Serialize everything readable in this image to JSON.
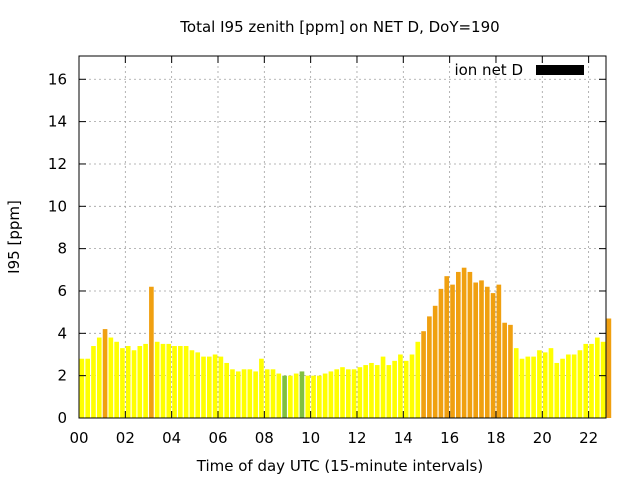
{
  "chart_data": {
    "type": "bar",
    "title": "Total I95 zenith [ppm] on NET D, DoY=190",
    "xlabel": "Time of day UTC (15-minute intervals)",
    "ylabel": "I95 [ppm]",
    "ylim": [
      0,
      17.1
    ],
    "xlim": [
      0,
      22.75
    ],
    "grid": true,
    "legend_position": "top-right",
    "legend": [
      {
        "name": "ion net D",
        "color": "#000000"
      }
    ],
    "x_ticks": [
      {
        "value": 0,
        "label": "00"
      },
      {
        "value": 2,
        "label": "02"
      },
      {
        "value": 4,
        "label": "04"
      },
      {
        "value": 6,
        "label": "06"
      },
      {
        "value": 8,
        "label": "08"
      },
      {
        "value": 10,
        "label": "10"
      },
      {
        "value": 12,
        "label": "12"
      },
      {
        "value": 14,
        "label": "14"
      },
      {
        "value": 16,
        "label": "16"
      },
      {
        "value": 18,
        "label": "18"
      },
      {
        "value": 20,
        "label": "20"
      },
      {
        "value": 22,
        "label": "22"
      }
    ],
    "y_ticks": [
      {
        "value": 0,
        "label": "0"
      },
      {
        "value": 2,
        "label": "2"
      },
      {
        "value": 4,
        "label": "4"
      },
      {
        "value": 6,
        "label": "6"
      },
      {
        "value": 8,
        "label": "8"
      },
      {
        "value": 10,
        "label": "10"
      },
      {
        "value": 12,
        "label": "12"
      },
      {
        "value": 14,
        "label": "14"
      },
      {
        "value": 16,
        "label": "16"
      }
    ],
    "bar_interval_hours": 0.25,
    "colors": {
      "low": "#ffff00",
      "medium": "#f0a010",
      "green": "#80c040"
    },
    "values": [
      2.8,
      2.8,
      3.4,
      3.8,
      4.2,
      3.8,
      3.6,
      3.3,
      3.4,
      3.2,
      3.4,
      3.5,
      6.2,
      3.6,
      3.5,
      3.5,
      3.4,
      3.4,
      3.4,
      3.2,
      3.1,
      2.9,
      2.9,
      3.0,
      2.9,
      2.6,
      2.3,
      2.2,
      2.3,
      2.3,
      2.2,
      2.8,
      2.3,
      2.3,
      2.1,
      2.0,
      2.0,
      2.1,
      2.2,
      2.0,
      2.0,
      2.0,
      2.1,
      2.2,
      2.3,
      2.4,
      2.3,
      2.3,
      2.4,
      2.5,
      2.6,
      2.5,
      2.9,
      2.5,
      2.7,
      3.0,
      2.7,
      3.0,
      3.6,
      4.1,
      4.8,
      5.3,
      6.1,
      6.7,
      6.3,
      6.9,
      7.1,
      6.9,
      6.4,
      6.5,
      6.2,
      5.9,
      6.3,
      4.5,
      4.4,
      3.3,
      2.8,
      2.9,
      2.9,
      3.2,
      3.1,
      3.3,
      2.6,
      2.8,
      3.0,
      3.0,
      3.2,
      3.5,
      3.5,
      3.8,
      3.6,
      4.7
    ],
    "color_class": [
      "low",
      "low",
      "low",
      "low",
      "medium",
      "low",
      "low",
      "low",
      "low",
      "low",
      "low",
      "low",
      "medium",
      "low",
      "low",
      "low",
      "low",
      "low",
      "low",
      "low",
      "low",
      "low",
      "low",
      "low",
      "low",
      "low",
      "low",
      "low",
      "low",
      "low",
      "low",
      "low",
      "low",
      "low",
      "low",
      "green",
      "low",
      "low",
      "green",
      "low",
      "low",
      "low",
      "low",
      "low",
      "low",
      "low",
      "low",
      "low",
      "low",
      "low",
      "low",
      "low",
      "low",
      "low",
      "low",
      "low",
      "low",
      "low",
      "low",
      "medium",
      "medium",
      "medium",
      "medium",
      "medium",
      "medium",
      "medium",
      "medium",
      "medium",
      "medium",
      "medium",
      "medium",
      "medium",
      "medium",
      "medium",
      "medium",
      "low",
      "low",
      "low",
      "low",
      "low",
      "low",
      "low",
      "low",
      "low",
      "low",
      "low",
      "low",
      "low",
      "low",
      "low",
      "low",
      "medium"
    ]
  }
}
